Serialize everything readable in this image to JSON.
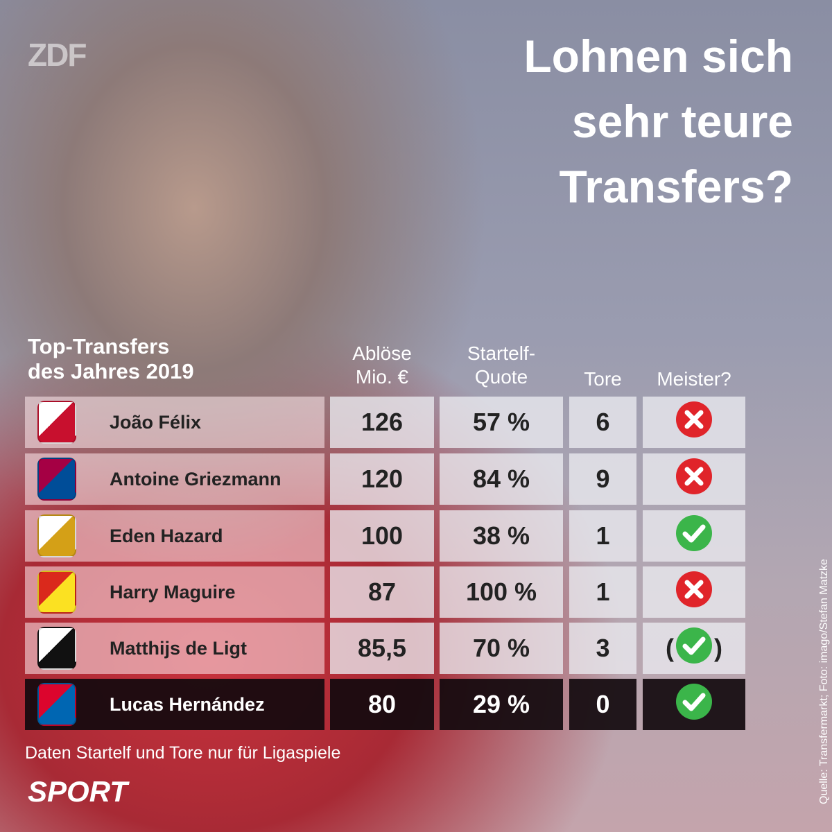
{
  "logo": "ZDF",
  "title": [
    "Lohnen sich",
    "sehr teure",
    "Transfers?"
  ],
  "table": {
    "caption": [
      "Top-Transfers",
      "des Jahres 2019"
    ],
    "headers": [
      [
        "Ablöse",
        "Mio. €"
      ],
      [
        "Startelf-",
        "Quote"
      ],
      [
        "Tore"
      ],
      [
        "Meister?"
      ]
    ],
    "rows": [
      {
        "name": "João Félix",
        "fee": "126",
        "quote": "57 %",
        "goals": "6"
      },
      {
        "name": "Antoine Griezmann",
        "fee": "120",
        "quote": "84 %",
        "goals": "9"
      },
      {
        "name": "Eden Hazard",
        "fee": "100",
        "quote": "38 %",
        "goals": "1"
      },
      {
        "name": "Harry Maguire",
        "fee": "87",
        "quote": "100 %",
        "goals": "1"
      },
      {
        "name": "Matthijs de Ligt",
        "fee": "85,5",
        "quote": "70 %",
        "goals": "3",
        "meister_note": [
          "(",
          ")"
        ]
      },
      {
        "name": "Lucas Hernández",
        "fee": "80",
        "quote": "29 %",
        "goals": "0"
      }
    ]
  },
  "footnote": "Daten Startelf und Tore nur für Ligaspiele",
  "brand": "SPORT",
  "credit": "Quelle: Transfermarkt; Foto: imago/Stefan Matzke"
}
